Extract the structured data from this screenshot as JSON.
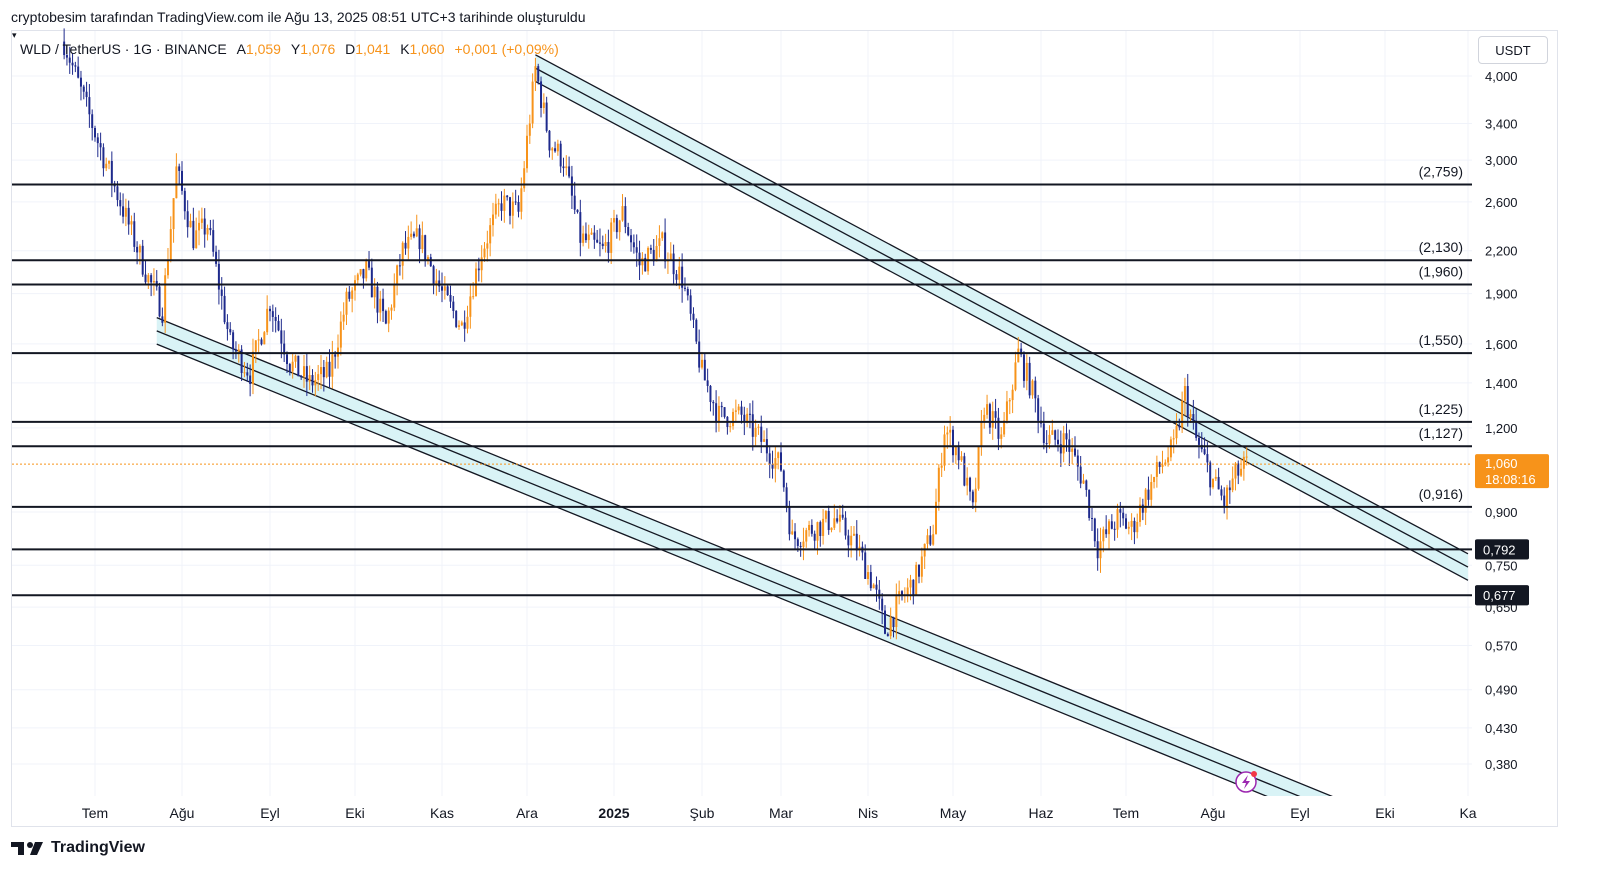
{
  "caption": "cryptobesim tarafından TradingView.com ile Ağu 13, 2025 08:51 UTC+3 tarihinde oluşturuldu",
  "legend": {
    "symbol": "WLD / TetherUS · 1G · BINANCE",
    "open_label": "A",
    "open": "1,059",
    "high_label": "Y",
    "high": "1,076",
    "low_label": "D",
    "low": "1,041",
    "close_label": "K",
    "close": "1,060",
    "change": "+0,001 (+0,09%)"
  },
  "currency": "USDT",
  "logo_text": "TradingView",
  "colors": {
    "up": "#f7931a",
    "down": "#1e2a8c",
    "channel_fill": "#d9f3f6",
    "level_line": "#131722",
    "price_line": "#f7931a",
    "price_label_bg": "#f7931a",
    "label_bg_dark": "#131722"
  },
  "chart_data": {
    "type": "candlestick",
    "scale": "log",
    "ylim": [
      0.33,
      4.6
    ],
    "x_tick_labels": [
      "Tem",
      "Ağu",
      "Eyl",
      "Eki",
      "Kas",
      "Ara",
      "2025",
      "Şub",
      "Mar",
      "Nis",
      "May",
      "Haz",
      "Tem",
      "Ağu",
      "Eyl",
      "Eki",
      "Ka"
    ],
    "x_tick_dates": [
      "2024-07-01",
      "2024-08-01",
      "2024-09-01",
      "2024-10-01",
      "2024-11-01",
      "2024-12-01",
      "2025-01-01",
      "2025-02-01",
      "2025-03-01",
      "2025-04-01",
      "2025-05-01",
      "2025-06-01",
      "2025-07-01",
      "2025-08-01",
      "2025-09-01",
      "2025-10-01",
      "2025-11-01"
    ],
    "y_tick_labels": [
      "4,000",
      "3,400",
      "3,000",
      "2,600",
      "2,200",
      "1,900",
      "1,600",
      "1,400",
      "1,200",
      "0,900",
      "0,750",
      "0,650",
      "0,570",
      "0,490",
      "0,430",
      "0,380"
    ],
    "y_ticks": [
      4.0,
      3.4,
      3.0,
      2.6,
      2.2,
      1.9,
      1.6,
      1.4,
      1.2,
      0.9,
      0.75,
      0.65,
      0.57,
      0.49,
      0.43,
      0.38
    ],
    "horizontal_levels": [
      {
        "value": 2.759,
        "label": "(2,759)"
      },
      {
        "value": 2.13,
        "label": "(2,130)"
      },
      {
        "value": 1.96,
        "label": "(1,960)"
      },
      {
        "value": 1.55,
        "label": "(1,550)"
      },
      {
        "value": 1.225,
        "label": "(1,225)"
      },
      {
        "value": 1.127,
        "label": "(1,127)"
      },
      {
        "value": 0.916,
        "label": "(0,916)"
      },
      {
        "value": 0.792,
        "label": "0,792",
        "boxed": true
      },
      {
        "value": 0.677,
        "label": "0,677",
        "boxed": true
      }
    ],
    "last_price": {
      "value": 1.06,
      "label": "1,060",
      "countdown": "18:08:16"
    },
    "channels": [
      {
        "name": "upper",
        "start": [
          "2024-12-04",
          4.3
        ],
        "end": [
          "2025-11-01",
          0.78
        ],
        "width_ratio": 1.095
      },
      {
        "name": "lower",
        "start": [
          "2024-07-23",
          1.75
        ],
        "end": [
          "2025-09-20",
          0.33
        ],
        "width_ratio": 1.095
      }
    ],
    "price_path": [
      [
        "2024-06-20",
        4.5
      ],
      [
        "2024-07-02",
        3.2
      ],
      [
        "2024-07-10",
        2.6
      ],
      [
        "2024-07-20",
        2.0
      ],
      [
        "2024-07-25",
        1.8
      ],
      [
        "2024-07-30",
        2.9
      ],
      [
        "2024-08-05",
        2.3
      ],
      [
        "2024-08-10",
        2.4
      ],
      [
        "2024-08-18",
        1.6
      ],
      [
        "2024-08-25",
        1.45
      ],
      [
        "2024-09-01",
        1.85
      ],
      [
        "2024-09-08",
        1.5
      ],
      [
        "2024-09-15",
        1.4
      ],
      [
        "2024-09-22",
        1.45
      ],
      [
        "2024-09-28",
        1.85
      ],
      [
        "2024-10-05",
        2.05
      ],
      [
        "2024-10-12",
        1.7
      ],
      [
        "2024-10-18",
        2.2
      ],
      [
        "2024-10-24",
        2.3
      ],
      [
        "2024-11-01",
        1.9
      ],
      [
        "2024-11-08",
        1.7
      ],
      [
        "2024-11-15",
        2.2
      ],
      [
        "2024-11-22",
        2.6
      ],
      [
        "2024-11-28",
        2.5
      ],
      [
        "2024-12-04",
        4.1
      ],
      [
        "2024-12-09",
        3.2
      ],
      [
        "2024-12-14",
        3.0
      ],
      [
        "2024-12-20",
        2.3
      ],
      [
        "2024-12-28",
        2.2
      ],
      [
        "2025-01-04",
        2.5
      ],
      [
        "2025-01-10",
        2.1
      ],
      [
        "2025-01-18",
        2.25
      ],
      [
        "2025-01-25",
        2.0
      ],
      [
        "2025-02-01",
        1.45
      ],
      [
        "2025-02-07",
        1.25
      ],
      [
        "2025-02-15",
        1.25
      ],
      [
        "2025-02-22",
        1.15
      ],
      [
        "2025-03-01",
        1.05
      ],
      [
        "2025-03-05",
        0.82
      ],
      [
        "2025-03-12",
        0.85
      ],
      [
        "2025-03-20",
        0.88
      ],
      [
        "2025-03-28",
        0.8
      ],
      [
        "2025-04-03",
        0.7
      ],
      [
        "2025-04-07",
        0.6
      ],
      [
        "2025-04-12",
        0.66
      ],
      [
        "2025-04-18",
        0.72
      ],
      [
        "2025-04-24",
        0.85
      ],
      [
        "2025-04-28",
        1.2
      ],
      [
        "2025-05-03",
        1.1
      ],
      [
        "2025-05-08",
        0.9
      ],
      [
        "2025-05-12",
        1.3
      ],
      [
        "2025-05-18",
        1.15
      ],
      [
        "2025-05-24",
        1.55
      ],
      [
        "2025-05-28",
        1.4
      ],
      [
        "2025-06-03",
        1.15
      ],
      [
        "2025-06-10",
        1.15
      ],
      [
        "2025-06-16",
        1.0
      ],
      [
        "2025-06-21",
        0.8
      ],
      [
        "2025-06-28",
        0.88
      ],
      [
        "2025-07-03",
        0.85
      ],
      [
        "2025-07-08",
        0.95
      ],
      [
        "2025-07-13",
        1.05
      ],
      [
        "2025-07-18",
        1.12
      ],
      [
        "2025-07-22",
        1.35
      ],
      [
        "2025-07-26",
        1.15
      ],
      [
        "2025-08-01",
        1.0
      ],
      [
        "2025-08-05",
        0.93
      ],
      [
        "2025-08-09",
        1.02
      ],
      [
        "2025-08-13",
        1.06
      ]
    ]
  }
}
